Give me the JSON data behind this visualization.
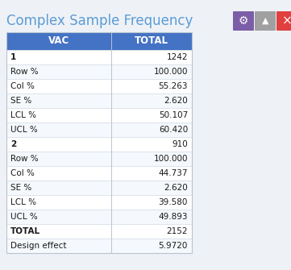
{
  "title": "Complex Sample Frequency",
  "title_color": "#5b9bd5",
  "bg_color": "#eef2f7",
  "header_bg": "#4472c4",
  "header_fg": "#ffffff",
  "header_labels": [
    "VAC",
    "TOTAL"
  ],
  "rows": [
    [
      "1",
      "1242"
    ],
    [
      "Row %",
      "100.000"
    ],
    [
      "Col %",
      "55.263"
    ],
    [
      "SE %",
      "2.620"
    ],
    [
      "LCL %",
      "50.107"
    ],
    [
      "UCL %",
      "60.420"
    ],
    [
      "2",
      "910"
    ],
    [
      "Row %",
      "100.000"
    ],
    [
      "Col %",
      "44.737"
    ],
    [
      "SE %",
      "2.620"
    ],
    [
      "LCL %",
      "39.580"
    ],
    [
      "UCL %",
      "49.893"
    ],
    [
      "TOTAL",
      "2152"
    ],
    [
      "Design effect",
      "5.9720"
    ]
  ],
  "bold_rows": [
    0,
    6,
    12
  ],
  "icon_gear_color": "#7b5ea7",
  "icon_triangle_color": "#a0a0a0",
  "icon_x_color": "#e04040",
  "table_border_color": "#b8c4d0",
  "row_line_color": "#d0dae4",
  "row_bg_white": "#ffffff",
  "row_bg_alt": "#f5f8fc"
}
